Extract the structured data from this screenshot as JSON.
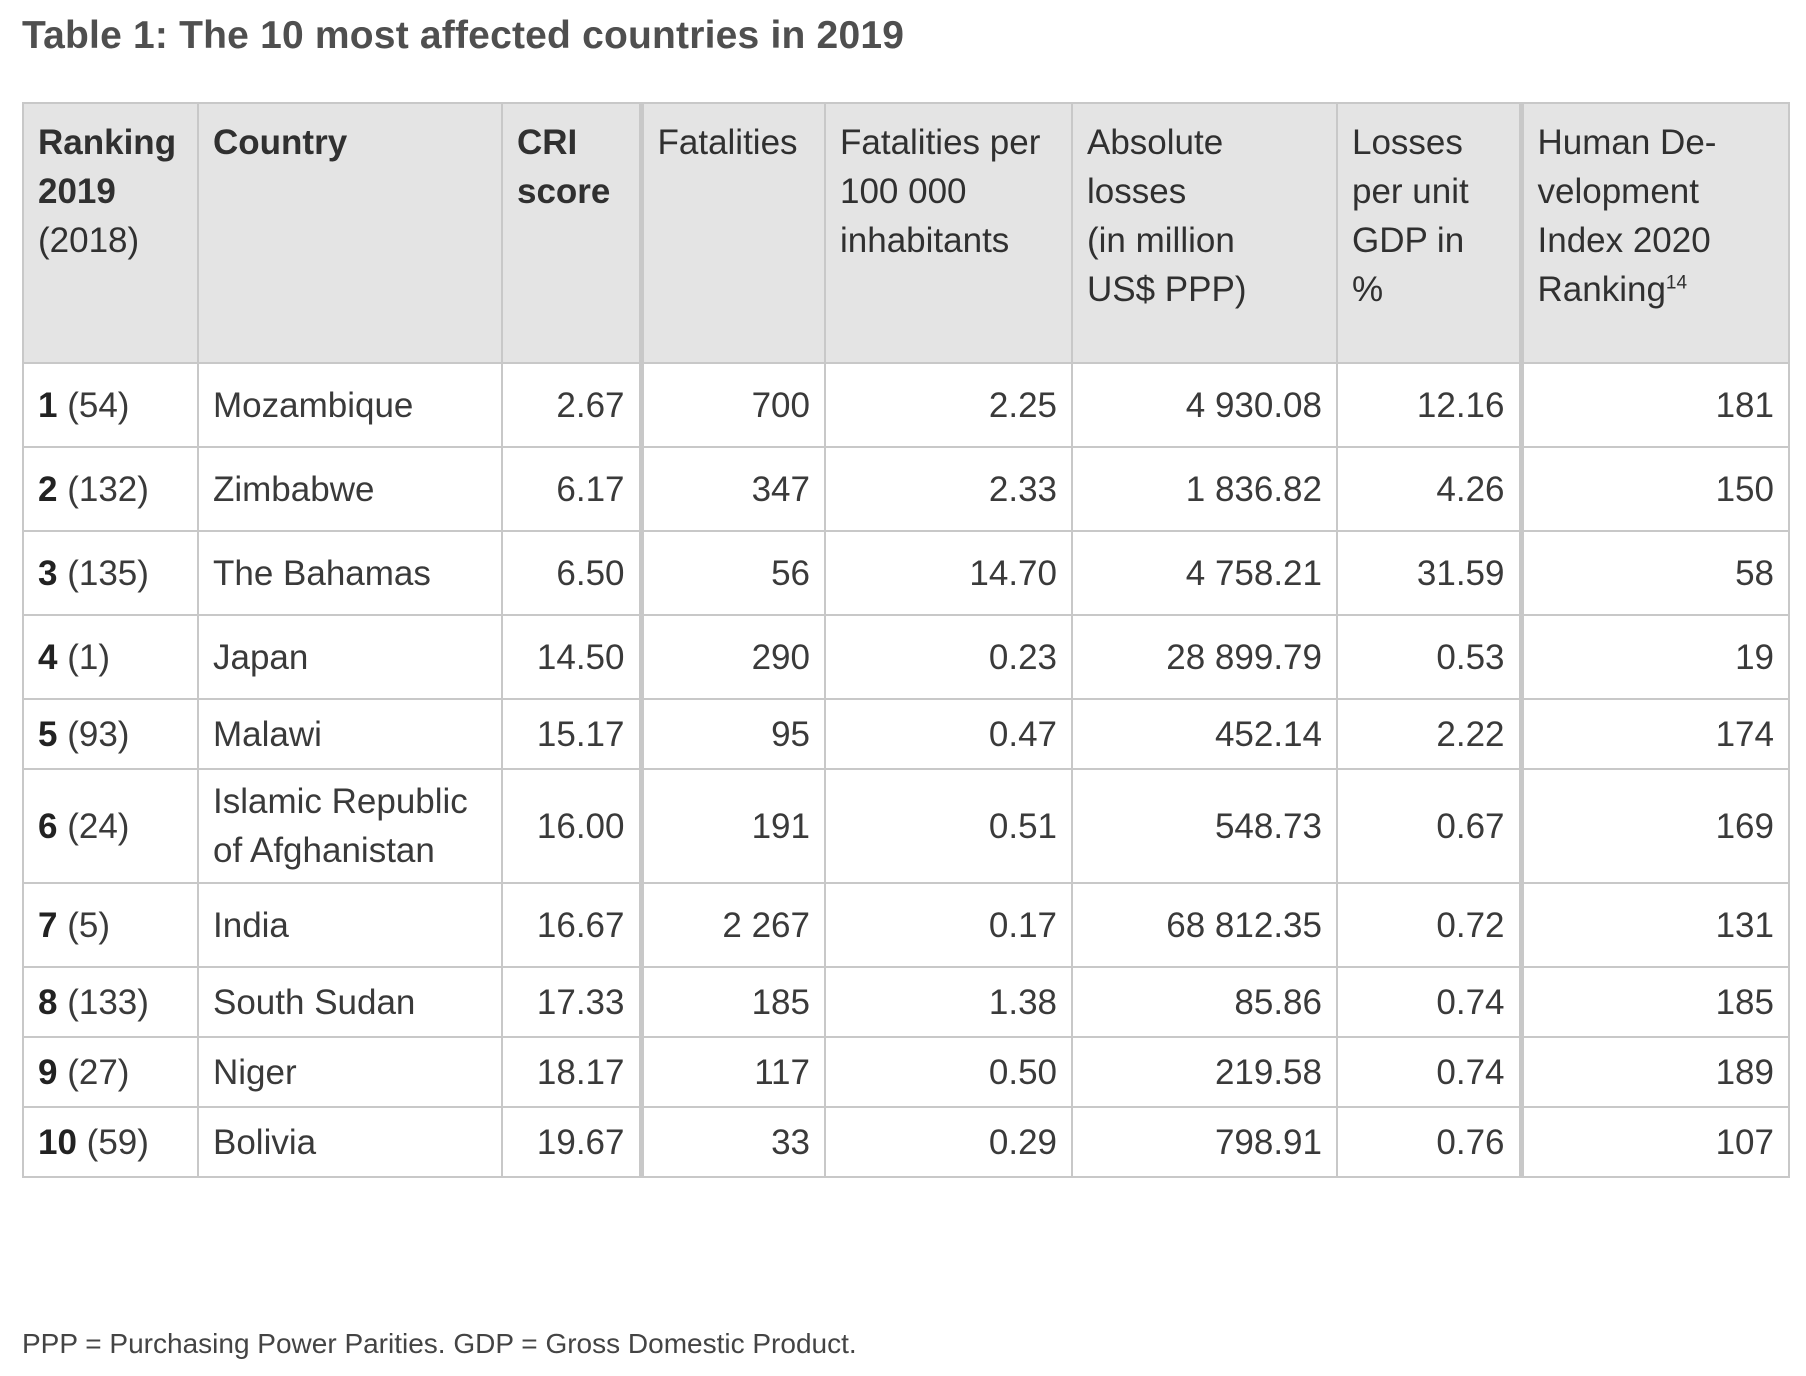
{
  "title": "Table 1: The 10 most affected countries in 2019",
  "headers": {
    "ranking_line1": "Ranking",
    "ranking_line2": "2019",
    "ranking_line3": "(2018)",
    "country": "Country",
    "cri_line1": "CRI",
    "cri_line2": "score",
    "fatalities": "Fatalities",
    "fat_per_line1": "Fatalities per",
    "fat_per_line2": "100 000",
    "fat_per_line3": "inhabitants",
    "abs_line1": "Absolute",
    "abs_line2": "losses",
    "abs_line3": "(in million",
    "abs_line4": "US$ PPP)",
    "loss_line1": "Losses",
    "loss_line2": "per unit",
    "loss_line3": "GDP in %",
    "hdi_line1": "Human De-",
    "hdi_line2": "velopment",
    "hdi_line3": "Index 2020",
    "hdi_line4": "Ranking",
    "hdi_footnote_ref": "14"
  },
  "rows": [
    {
      "rank": "1",
      "prev": "(54)",
      "country_line1": "Mozambique",
      "country_line2": "",
      "cri": "2.67",
      "fatalities": "700",
      "fat_per": "2.25",
      "abs_losses": "4 930.08",
      "loss_gdp": "12.16",
      "hdi": "181"
    },
    {
      "rank": "2",
      "prev": "(132)",
      "country_line1": "Zimbabwe",
      "country_line2": "",
      "cri": "6.17",
      "fatalities": "347",
      "fat_per": "2.33",
      "abs_losses": "1 836.82",
      "loss_gdp": "4.26",
      "hdi": "150"
    },
    {
      "rank": "3",
      "prev": "(135)",
      "country_line1": "The Bahamas",
      "country_line2": "",
      "cri": "6.50",
      "fatalities": "56",
      "fat_per": "14.70",
      "abs_losses": "4 758.21",
      "loss_gdp": "31.59",
      "hdi": "58"
    },
    {
      "rank": "4",
      "prev": "(1)",
      "country_line1": "Japan",
      "country_line2": "",
      "cri": "14.50",
      "fatalities": "290",
      "fat_per": "0.23",
      "abs_losses": "28 899.79",
      "loss_gdp": "0.53",
      "hdi": "19"
    },
    {
      "rank": "5",
      "prev": "(93)",
      "country_line1": "Malawi",
      "country_line2": "",
      "cri": "15.17",
      "fatalities": "95",
      "fat_per": "0.47",
      "abs_losses": "452.14",
      "loss_gdp": "2.22",
      "hdi": "174"
    },
    {
      "rank": "6",
      "prev": "(24)",
      "country_line1": "Islamic Republic",
      "country_line2": "of Afghanistan",
      "cri": "16.00",
      "fatalities": "191",
      "fat_per": "0.51",
      "abs_losses": "548.73",
      "loss_gdp": "0.67",
      "hdi": "169"
    },
    {
      "rank": "7",
      "prev": "(5)",
      "country_line1": "India",
      "country_line2": "",
      "cri": "16.67",
      "fatalities": "2 267",
      "fat_per": "0.17",
      "abs_losses": "68 812.35",
      "loss_gdp": "0.72",
      "hdi": "131"
    },
    {
      "rank": "8",
      "prev": "(133)",
      "country_line1": "South Sudan",
      "country_line2": "",
      "cri": "17.33",
      "fatalities": "185",
      "fat_per": "1.38",
      "abs_losses": "85.86",
      "loss_gdp": "0.74",
      "hdi": "185"
    },
    {
      "rank": "9",
      "prev": "(27)",
      "country_line1": "Niger",
      "country_line2": "",
      "cri": "18.17",
      "fatalities": "117",
      "fat_per": "0.50",
      "abs_losses": "219.58",
      "loss_gdp": "0.74",
      "hdi": "189"
    },
    {
      "rank": "10",
      "prev": "(59)",
      "country_line1": "Bolivia",
      "country_line2": "",
      "cri": "19.67",
      "fatalities": "33",
      "fat_per": "0.29",
      "abs_losses": "798.91",
      "loss_gdp": "0.76",
      "hdi": "107"
    }
  ],
  "footnote": "PPP = Purchasing Power Parities. GDP = Gross Domestic Product."
}
